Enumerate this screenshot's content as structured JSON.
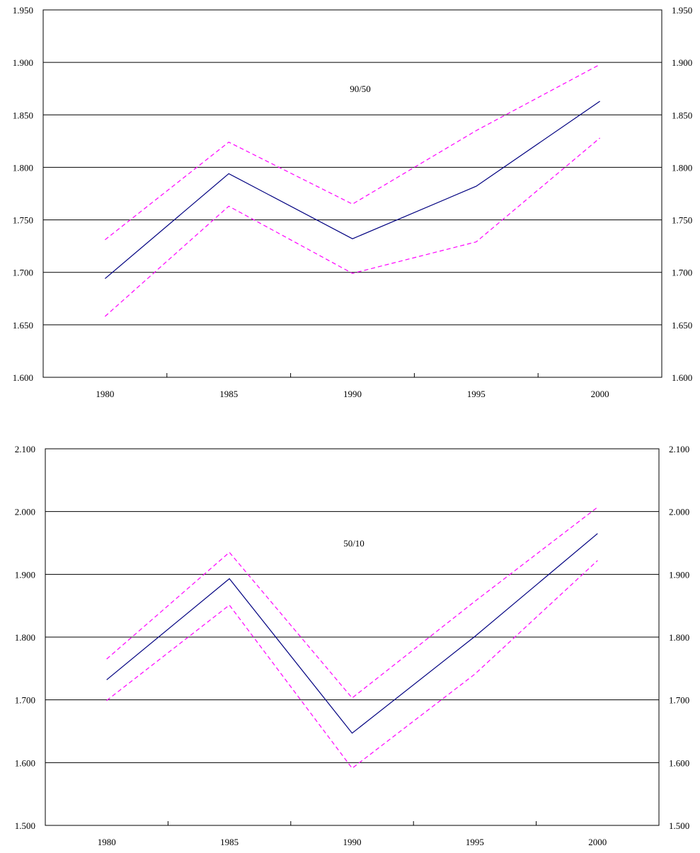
{
  "colors": {
    "central": "#000080",
    "band": "#ff00ff",
    "grid": "#000000",
    "background": "#ffffff"
  },
  "chart_data": [
    {
      "type": "line",
      "title": "",
      "annotation": "90/50",
      "categories": [
        "1980",
        "1985",
        "1990",
        "1995",
        "2000"
      ],
      "y_tick_labels": [
        "1.600",
        "1.650",
        "1.700",
        "1.750",
        "1.800",
        "1.850",
        "1.900",
        "1.950"
      ],
      "ylim": [
        1.6,
        1.95
      ],
      "grid": true,
      "legend": "none",
      "series": [
        {
          "style": "solid",
          "values": [
            1.694,
            1.794,
            1.732,
            1.782,
            1.863
          ]
        },
        {
          "style": "dashed",
          "values": [
            1.731,
            1.824,
            1.765,
            1.835,
            1.898
          ]
        },
        {
          "style": "dashed",
          "values": [
            1.658,
            1.763,
            1.699,
            1.729,
            1.828
          ]
        }
      ]
    },
    {
      "type": "line",
      "title": "",
      "annotation": "50/10",
      "categories": [
        "1980",
        "1985",
        "1990",
        "1995",
        "2000"
      ],
      "y_tick_labels": [
        "1.500",
        "1.600",
        "1.700",
        "1.800",
        "1.900",
        "2.000",
        "2.100"
      ],
      "ylim": [
        1.5,
        2.1
      ],
      "grid": true,
      "legend": "none",
      "series": [
        {
          "style": "solid",
          "values": [
            1.732,
            1.893,
            1.647,
            1.801,
            1.965
          ]
        },
        {
          "style": "dashed",
          "values": [
            1.765,
            1.935,
            1.703,
            1.857,
            2.007
          ]
        },
        {
          "style": "dashed",
          "values": [
            1.699,
            1.851,
            1.591,
            1.741,
            1.922
          ]
        }
      ]
    }
  ]
}
